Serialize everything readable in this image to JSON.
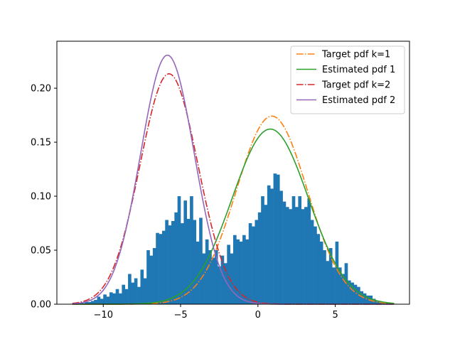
{
  "chart_data": {
    "type": "line",
    "title": "",
    "xlabel": "",
    "ylabel": "",
    "xlim": [
      -13.0,
      9.8
    ],
    "ylim": [
      0.0,
      0.2435
    ],
    "xticks": [
      -10,
      -5,
      0,
      5
    ],
    "xtick_labels": [
      "−10",
      "−5",
      "0",
      "5"
    ],
    "yticks": [
      0.0,
      0.05,
      0.1,
      0.15,
      0.2
    ],
    "ytick_labels": [
      "0.00",
      "0.05",
      "0.10",
      "0.15",
      "0.20"
    ],
    "grid": false,
    "legend": {
      "placement": "top-right"
    },
    "histogram": {
      "name": "",
      "color": "#1f77b4",
      "bins": [
        [
          -12.0,
          0.001
        ],
        [
          -11.8,
          0.001
        ],
        [
          -11.6,
          0.001
        ],
        [
          -11.4,
          0.001
        ],
        [
          -11.2,
          0.002
        ],
        [
          -11.0,
          0.002
        ],
        [
          -10.8,
          0.003
        ],
        [
          -10.6,
          0.004
        ],
        [
          -10.4,
          0.007
        ],
        [
          -10.2,
          0.005
        ],
        [
          -10.0,
          0.009
        ],
        [
          -9.8,
          0.007
        ],
        [
          -9.6,
          0.011
        ],
        [
          -9.4,
          0.01
        ],
        [
          -9.2,
          0.014
        ],
        [
          -9.0,
          0.01
        ],
        [
          -8.8,
          0.018
        ],
        [
          -8.6,
          0.014
        ],
        [
          -8.4,
          0.028
        ],
        [
          -8.2,
          0.02
        ],
        [
          -8.0,
          0.024
        ],
        [
          -7.8,
          0.016
        ],
        [
          -7.6,
          0.032
        ],
        [
          -7.4,
          0.024
        ],
        [
          -7.2,
          0.05
        ],
        [
          -7.0,
          0.045
        ],
        [
          -6.8,
          0.052
        ],
        [
          -6.6,
          0.066
        ],
        [
          -6.4,
          0.065
        ],
        [
          -6.2,
          0.068
        ],
        [
          -6.0,
          0.078
        ],
        [
          -5.8,
          0.073
        ],
        [
          -5.6,
          0.077
        ],
        [
          -5.4,
          0.085
        ],
        [
          -5.2,
          0.1
        ],
        [
          -5.0,
          0.075
        ],
        [
          -4.8,
          0.096
        ],
        [
          -4.6,
          0.079
        ],
        [
          -4.4,
          0.1
        ],
        [
          -4.2,
          0.078
        ],
        [
          -4.0,
          0.058
        ],
        [
          -3.8,
          0.08
        ],
        [
          -3.6,
          0.047
        ],
        [
          -3.4,
          0.06
        ],
        [
          -3.2,
          0.05
        ],
        [
          -3.0,
          0.043
        ],
        [
          -2.8,
          0.05
        ],
        [
          -2.6,
          0.035
        ],
        [
          -2.4,
          0.045
        ],
        [
          -2.2,
          0.038
        ],
        [
          -2.0,
          0.055
        ],
        [
          -1.8,
          0.047
        ],
        [
          -1.6,
          0.064
        ],
        [
          -1.4,
          0.06
        ],
        [
          -1.2,
          0.058
        ],
        [
          -1.0,
          0.064
        ],
        [
          -0.8,
          0.06
        ],
        [
          -0.6,
          0.075
        ],
        [
          -0.4,
          0.072
        ],
        [
          -0.2,
          0.078
        ],
        [
          0.0,
          0.085
        ],
        [
          0.2,
          0.1
        ],
        [
          0.4,
          0.092
        ],
        [
          0.6,
          0.11
        ],
        [
          0.8,
          0.107
        ],
        [
          1.0,
          0.121
        ],
        [
          1.2,
          0.12
        ],
        [
          1.4,
          0.105
        ],
        [
          1.6,
          0.095
        ],
        [
          1.8,
          0.09
        ],
        [
          2.0,
          0.088
        ],
        [
          2.2,
          0.1
        ],
        [
          2.4,
          0.09
        ],
        [
          2.6,
          0.1
        ],
        [
          2.8,
          0.088
        ],
        [
          3.0,
          0.09
        ],
        [
          3.2,
          0.098
        ],
        [
          3.4,
          0.078
        ],
        [
          3.6,
          0.072
        ],
        [
          3.8,
          0.065
        ],
        [
          4.0,
          0.058
        ],
        [
          4.2,
          0.05
        ],
        [
          4.4,
          0.04
        ],
        [
          4.6,
          0.052
        ],
        [
          4.8,
          0.034
        ],
        [
          5.0,
          0.058
        ],
        [
          5.2,
          0.034
        ],
        [
          5.4,
          0.028
        ],
        [
          5.6,
          0.038
        ],
        [
          5.8,
          0.022
        ],
        [
          6.0,
          0.02
        ],
        [
          6.2,
          0.018
        ],
        [
          6.4,
          0.016
        ],
        [
          6.6,
          0.012
        ],
        [
          6.8,
          0.01
        ],
        [
          7.0,
          0.008
        ],
        [
          7.2,
          0.008
        ],
        [
          7.4,
          0.005
        ],
        [
          7.6,
          0.003
        ],
        [
          7.8,
          0.002
        ],
        [
          8.0,
          0.002
        ],
        [
          8.2,
          0.001
        ],
        [
          8.4,
          0.001
        ],
        [
          8.6,
          0.001
        ]
      ],
      "bin_width": 0.2
    },
    "series": [
      {
        "name": "Target pdf k=1",
        "color": "#ff7f0e",
        "style": "dashdot",
        "distribution": "normal",
        "mu": 0.9,
        "sigma": 2.29,
        "weight": 1.0,
        "x_range": [
          -12.0,
          8.8
        ]
      },
      {
        "name": "Estimated pdf 1",
        "color": "#2ca02c",
        "style": "solid",
        "distribution": "normal",
        "mu": 0.8,
        "sigma": 2.46,
        "weight": 1.0,
        "x_range": [
          -12.0,
          8.8
        ]
      },
      {
        "name": "Target pdf k=2",
        "color": "#d62728",
        "style": "dashdot",
        "distribution": "normal",
        "mu": -5.75,
        "sigma": 1.87,
        "weight": 1.0,
        "x_range": [
          -12.0,
          8.8
        ]
      },
      {
        "name": "Estimated pdf 2",
        "color": "#9467bd",
        "style": "solid",
        "distribution": "normal",
        "mu": -5.85,
        "sigma": 1.73,
        "weight": 1.0,
        "x_range": [
          -12.0,
          8.8
        ]
      }
    ]
  }
}
